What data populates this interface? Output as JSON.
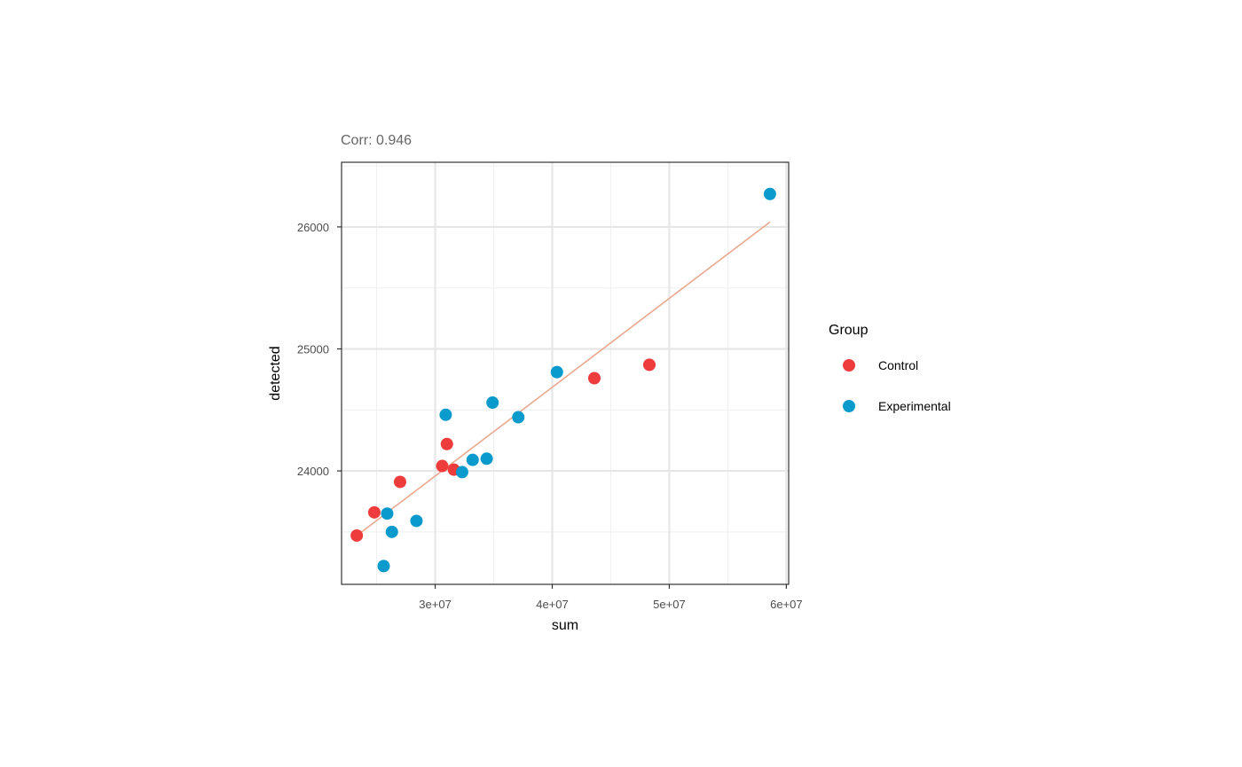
{
  "chart_data": {
    "type": "scatter",
    "subtitle": "Corr: 0.946",
    "xlabel": "sum",
    "ylabel": "detected",
    "xlim": [
      22000000,
      60200000
    ],
    "ylim": [
      23070,
      26530
    ],
    "x_ticks": [
      30000000,
      40000000,
      50000000,
      60000000
    ],
    "x_tick_labels": [
      "3e+07",
      "4e+07",
      "5e+07",
      "6e+07"
    ],
    "y_ticks": [
      24000,
      25000,
      26000
    ],
    "y_tick_labels": [
      "24000",
      "25000",
      "26000"
    ],
    "grid": true,
    "legend": {
      "title": "Group",
      "placement": "right"
    },
    "trend_line": {
      "color": "#E9A88F",
      "from": [
        23300000,
        23470
      ],
      "to": [
        58600000,
        26040
      ]
    },
    "series": [
      {
        "name": "Control",
        "color": "#EE3B3B",
        "points": [
          [
            23300000,
            23470
          ],
          [
            24800000,
            23660
          ],
          [
            27000000,
            23910
          ],
          [
            30600000,
            24040
          ],
          [
            31000000,
            24220
          ],
          [
            31600000,
            24010
          ],
          [
            43600000,
            24760
          ],
          [
            48300000,
            24870
          ]
        ]
      },
      {
        "name": "Experimental",
        "color": "#0A9ACB",
        "points": [
          [
            25600000,
            23220
          ],
          [
            25900000,
            23650
          ],
          [
            26300000,
            23500
          ],
          [
            28400000,
            23590
          ],
          [
            30900000,
            24460
          ],
          [
            32300000,
            23990
          ],
          [
            33200000,
            24090
          ],
          [
            34400000,
            24100
          ],
          [
            34900000,
            24560
          ],
          [
            37100000,
            24440
          ],
          [
            40400000,
            24810
          ],
          [
            58600000,
            26270
          ]
        ]
      }
    ]
  }
}
